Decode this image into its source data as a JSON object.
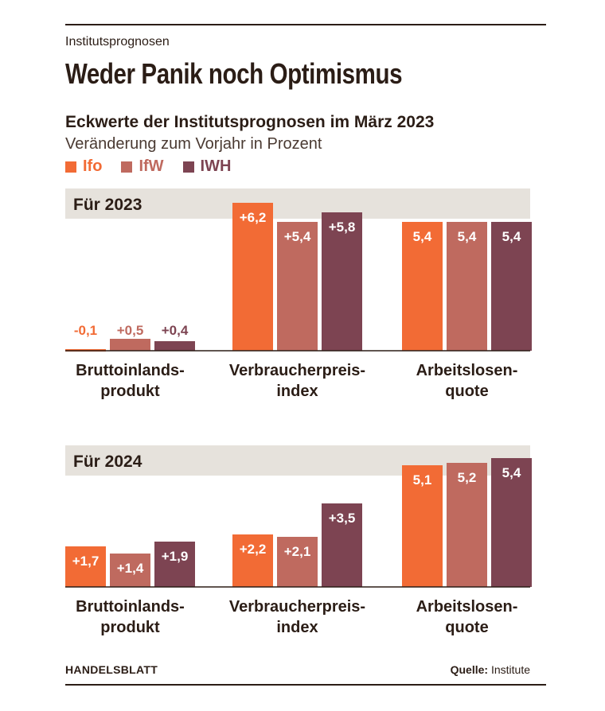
{
  "header": {
    "kicker": "Institutsprognosen",
    "title": "Weder Panik noch Optimismus",
    "subtitle": "Eckwerte der Institutsprognosen im März 2023",
    "unit": "Veränderung zum Vorjahr in Prozent"
  },
  "legend": [
    {
      "label": "Ifo",
      "color": "#f26b35"
    },
    {
      "label": "IfW",
      "color": "#bf6a5f"
    },
    {
      "label": "IWH",
      "color": "#7d4452"
    }
  ],
  "footer": {
    "brand": "HANDELSBLATT",
    "source_label": "Quelle:",
    "source_value": "Institute"
  },
  "colors": {
    "band": "#e6e2dc",
    "text_dark": "#2b1d16",
    "axis": "#2b1d16"
  },
  "chart_data": [
    {
      "type": "bar",
      "panel_label": "Für 2023",
      "categories": [
        "Bruttoinlands-\nprodukt",
        "Verbraucherpreis-\nindex",
        "Arbeitslosen-\nquote"
      ],
      "series": [
        {
          "name": "Ifo",
          "values": [
            -0.1,
            6.2,
            5.4
          ],
          "labels": [
            "-0,1",
            "+6,2",
            "5,4"
          ]
        },
        {
          "name": "IfW",
          "values": [
            0.5,
            5.4,
            5.4
          ],
          "labels": [
            "+0,5",
            "+5,4",
            "5,4"
          ]
        },
        {
          "name": "IWH",
          "values": [
            0.4,
            5.8,
            5.4
          ],
          "labels": [
            "+0,4",
            "+5,8",
            "5,4"
          ]
        }
      ],
      "xlabel": "",
      "ylabel": ""
    },
    {
      "type": "bar",
      "panel_label": "Für 2024",
      "categories": [
        "Bruttoinlands-\nprodukt",
        "Verbraucherpreis-\nindex",
        "Arbeitslosen-\nquote"
      ],
      "series": [
        {
          "name": "Ifo",
          "values": [
            1.7,
            2.2,
            5.1
          ],
          "labels": [
            "+1,7",
            "+2,2",
            "5,1"
          ]
        },
        {
          "name": "IfW",
          "values": [
            1.4,
            2.1,
            5.2
          ],
          "labels": [
            "+1,4",
            "+2,1",
            "5,2"
          ]
        },
        {
          "name": "IWH",
          "values": [
            1.9,
            3.5,
            5.4
          ],
          "labels": [
            "+1,9",
            "+3,5",
            "5,4"
          ]
        }
      ],
      "xlabel": "",
      "ylabel": ""
    }
  ]
}
